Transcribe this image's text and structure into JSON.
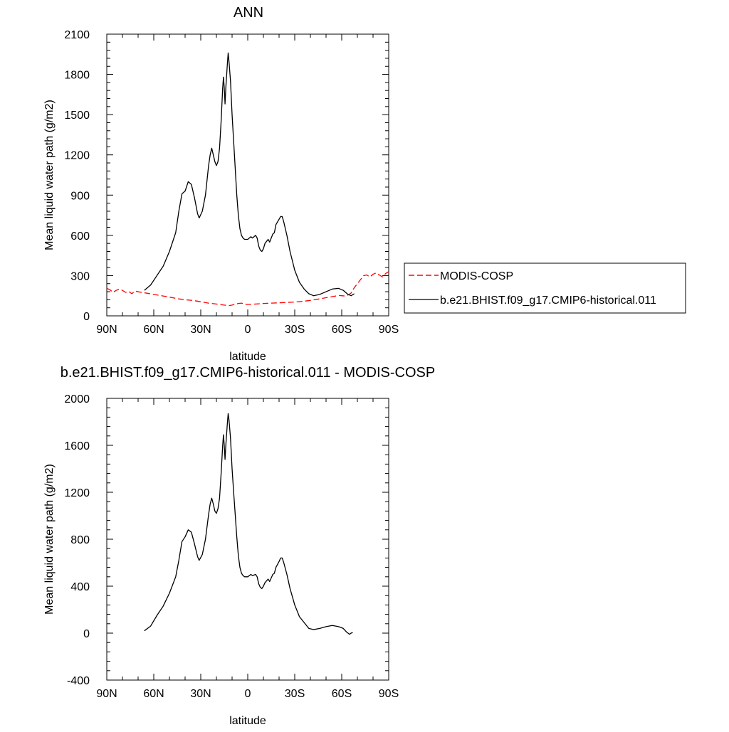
{
  "chart_data": [
    {
      "type": "line",
      "title": "ANN",
      "xlabel": "latitude",
      "ylabel": "Mean liquid water path (g/m2)",
      "xlim": [
        90,
        -90
      ],
      "ylim": [
        0,
        2100
      ],
      "x_ticks": [
        90,
        60,
        30,
        0,
        -30,
        -60,
        -90
      ],
      "x_tick_labels": [
        "90N",
        "60N",
        "30N",
        "0",
        "30S",
        "60S",
        "90S"
      ],
      "y_ticks": [
        0,
        300,
        600,
        900,
        1200,
        1500,
        1800,
        2100
      ],
      "y_tick_labels": [
        "0",
        "300",
        "600",
        "900",
        "1200",
        "1500",
        "1800",
        "2100"
      ],
      "grid": false,
      "legend_position": "right",
      "series": [
        {
          "name": "MODIS-COSP",
          "color": "#ff0000",
          "dash": "dashed",
          "points": [
            [
              90,
              205
            ],
            [
              88,
              195
            ],
            [
              86,
              175
            ],
            [
              84,
              190
            ],
            [
              82,
              200
            ],
            [
              80,
              190
            ],
            [
              78,
              175
            ],
            [
              76,
              182
            ],
            [
              74,
              165
            ],
            [
              72,
              185
            ],
            [
              70,
              180
            ],
            [
              68,
              175
            ],
            [
              65,
              170
            ],
            [
              60,
              160
            ],
            [
              55,
              150
            ],
            [
              50,
              140
            ],
            [
              45,
              128
            ],
            [
              40,
              120
            ],
            [
              35,
              115
            ],
            [
              30,
              105
            ],
            [
              25,
              95
            ],
            [
              20,
              88
            ],
            [
              15,
              80
            ],
            [
              12,
              76
            ],
            [
              10,
              80
            ],
            [
              8,
              88
            ],
            [
              6,
              92
            ],
            [
              4,
              95
            ],
            [
              2,
              88
            ],
            [
              0,
              85
            ],
            [
              -5,
              88
            ],
            [
              -10,
              92
            ],
            [
              -15,
              95
            ],
            [
              -20,
              97
            ],
            [
              -25,
              100
            ],
            [
              -30,
              103
            ],
            [
              -35,
              108
            ],
            [
              -40,
              115
            ],
            [
              -45,
              125
            ],
            [
              -50,
              135
            ],
            [
              -55,
              145
            ],
            [
              -58,
              152
            ],
            [
              -60,
              150
            ],
            [
              -62,
              148
            ],
            [
              -64,
              155
            ],
            [
              -66,
              170
            ],
            [
              -68,
              210
            ],
            [
              -70,
              240
            ],
            [
              -72,
              270
            ],
            [
              -74,
              300
            ],
            [
              -76,
              305
            ],
            [
              -78,
              290
            ],
            [
              -80,
              310
            ],
            [
              -82,
              320
            ],
            [
              -84,
              305
            ],
            [
              -86,
              290
            ],
            [
              -88,
              315
            ],
            [
              -90,
              330
            ]
          ]
        },
        {
          "name": "b.e21.BHIST.f09_g17.CMIP6-historical.011",
          "color": "#000000",
          "dash": "solid",
          "points": [
            [
              66,
              190
            ],
            [
              62,
              230
            ],
            [
              58,
              300
            ],
            [
              54,
              370
            ],
            [
              50,
              480
            ],
            [
              46,
              620
            ],
            [
              44,
              780
            ],
            [
              42,
              910
            ],
            [
              40,
              930
            ],
            [
              38,
              1000
            ],
            [
              36,
              980
            ],
            [
              34,
              880
            ],
            [
              32,
              760
            ],
            [
              31,
              730
            ],
            [
              29,
              780
            ],
            [
              27,
              900
            ],
            [
              25,
              1120
            ],
            [
              24,
              1200
            ],
            [
              23,
              1250
            ],
            [
              22,
              1200
            ],
            [
              21,
              1150
            ],
            [
              20,
              1120
            ],
            [
              19,
              1150
            ],
            [
              18,
              1250
            ],
            [
              17,
              1450
            ],
            [
              16,
              1700
            ],
            [
              15.5,
              1780
            ],
            [
              15,
              1700
            ],
            [
              14.5,
              1580
            ],
            [
              14,
              1700
            ],
            [
              13,
              1880
            ],
            [
              12.5,
              1960
            ],
            [
              12,
              1900
            ],
            [
              11,
              1750
            ],
            [
              10,
              1500
            ],
            [
              9,
              1300
            ],
            [
              8,
              1100
            ],
            [
              7,
              900
            ],
            [
              6,
              750
            ],
            [
              5,
              650
            ],
            [
              4,
              600
            ],
            [
              3,
              580
            ],
            [
              2,
              570
            ],
            [
              0,
              570
            ],
            [
              -2,
              590
            ],
            [
              -3,
              580
            ],
            [
              -5,
              600
            ],
            [
              -6,
              580
            ],
            [
              -7,
              520
            ],
            [
              -8,
              490
            ],
            [
              -9,
              480
            ],
            [
              -10,
              500
            ],
            [
              -11,
              540
            ],
            [
              -13,
              570
            ],
            [
              -14,
              550
            ],
            [
              -16,
              610
            ],
            [
              -17,
              620
            ],
            [
              -18,
              680
            ],
            [
              -20,
              720
            ],
            [
              -21,
              740
            ],
            [
              -22,
              740
            ],
            [
              -23,
              700
            ],
            [
              -25,
              600
            ],
            [
              -27,
              480
            ],
            [
              -30,
              340
            ],
            [
              -33,
              250
            ],
            [
              -36,
              200
            ],
            [
              -39,
              165
            ],
            [
              -42,
              150
            ],
            [
              -46,
              160
            ],
            [
              -50,
              180
            ],
            [
              -54,
              200
            ],
            [
              -58,
              205
            ],
            [
              -61,
              190
            ],
            [
              -64,
              160
            ],
            [
              -66,
              150
            ],
            [
              -68,
              165
            ]
          ]
        }
      ]
    },
    {
      "type": "line",
      "title": "b.e21.BHIST.f09_g17.CMIP6-historical.011 - MODIS-COSP",
      "xlabel": "latitude",
      "ylabel": "Mean liquid water path (g/m2)",
      "xlim": [
        90,
        -90
      ],
      "ylim": [
        -400,
        2000
      ],
      "x_ticks": [
        90,
        60,
        30,
        0,
        -30,
        -60,
        -90
      ],
      "x_tick_labels": [
        "90N",
        "60N",
        "30N",
        "0",
        "30S",
        "60S",
        "90S"
      ],
      "y_ticks": [
        -400,
        0,
        400,
        800,
        1200,
        1600,
        2000
      ],
      "y_tick_labels": [
        "-400",
        "0",
        "400",
        "800",
        "1200",
        "1600",
        "2000"
      ],
      "grid": false,
      "series": [
        {
          "color": "#000000",
          "dash": "solid",
          "points": [
            [
              66,
              20
            ],
            [
              62,
              60
            ],
            [
              58,
              150
            ],
            [
              54,
              230
            ],
            [
              50,
              340
            ],
            [
              46,
              480
            ],
            [
              44,
              620
            ],
            [
              42,
              780
            ],
            [
              40,
              820
            ],
            [
              38,
              880
            ],
            [
              36,
              860
            ],
            [
              34,
              760
            ],
            [
              32,
              650
            ],
            [
              31,
              620
            ],
            [
              29,
              670
            ],
            [
              27,
              800
            ],
            [
              25,
              1010
            ],
            [
              24,
              1100
            ],
            [
              23,
              1150
            ],
            [
              22,
              1100
            ],
            [
              21,
              1040
            ],
            [
              20,
              1020
            ],
            [
              19,
              1060
            ],
            [
              18,
              1150
            ],
            [
              17,
              1360
            ],
            [
              16,
              1600
            ],
            [
              15.5,
              1690
            ],
            [
              15,
              1600
            ],
            [
              14.5,
              1480
            ],
            [
              14,
              1600
            ],
            [
              13,
              1790
            ],
            [
              12.5,
              1870
            ],
            [
              12,
              1820
            ],
            [
              11,
              1660
            ],
            [
              10,
              1400
            ],
            [
              9,
              1200
            ],
            [
              8,
              1010
            ],
            [
              7,
              820
            ],
            [
              6,
              660
            ],
            [
              5,
              560
            ],
            [
              4,
              510
            ],
            [
              3,
              490
            ],
            [
              2,
              480
            ],
            [
              0,
              480
            ],
            [
              -2,
              500
            ],
            [
              -3,
              490
            ],
            [
              -5,
              500
            ],
            [
              -6,
              480
            ],
            [
              -7,
              420
            ],
            [
              -8,
              390
            ],
            [
              -9,
              380
            ],
            [
              -10,
              400
            ],
            [
              -11,
              430
            ],
            [
              -13,
              460
            ],
            [
              -14,
              440
            ],
            [
              -16,
              500
            ],
            [
              -17,
              510
            ],
            [
              -18,
              560
            ],
            [
              -20,
              610
            ],
            [
              -21,
              640
            ],
            [
              -22,
              640
            ],
            [
              -23,
              600
            ],
            [
              -25,
              500
            ],
            [
              -27,
              380
            ],
            [
              -30,
              240
            ],
            [
              -33,
              140
            ],
            [
              -36,
              90
            ],
            [
              -39,
              40
            ],
            [
              -42,
              30
            ],
            [
              -46,
              40
            ],
            [
              -50,
              55
            ],
            [
              -54,
              65
            ],
            [
              -58,
              55
            ],
            [
              -61,
              40
            ],
            [
              -63,
              10
            ],
            [
              -65,
              -10
            ],
            [
              -66,
              0
            ],
            [
              -67,
              5
            ]
          ]
        }
      ]
    }
  ]
}
